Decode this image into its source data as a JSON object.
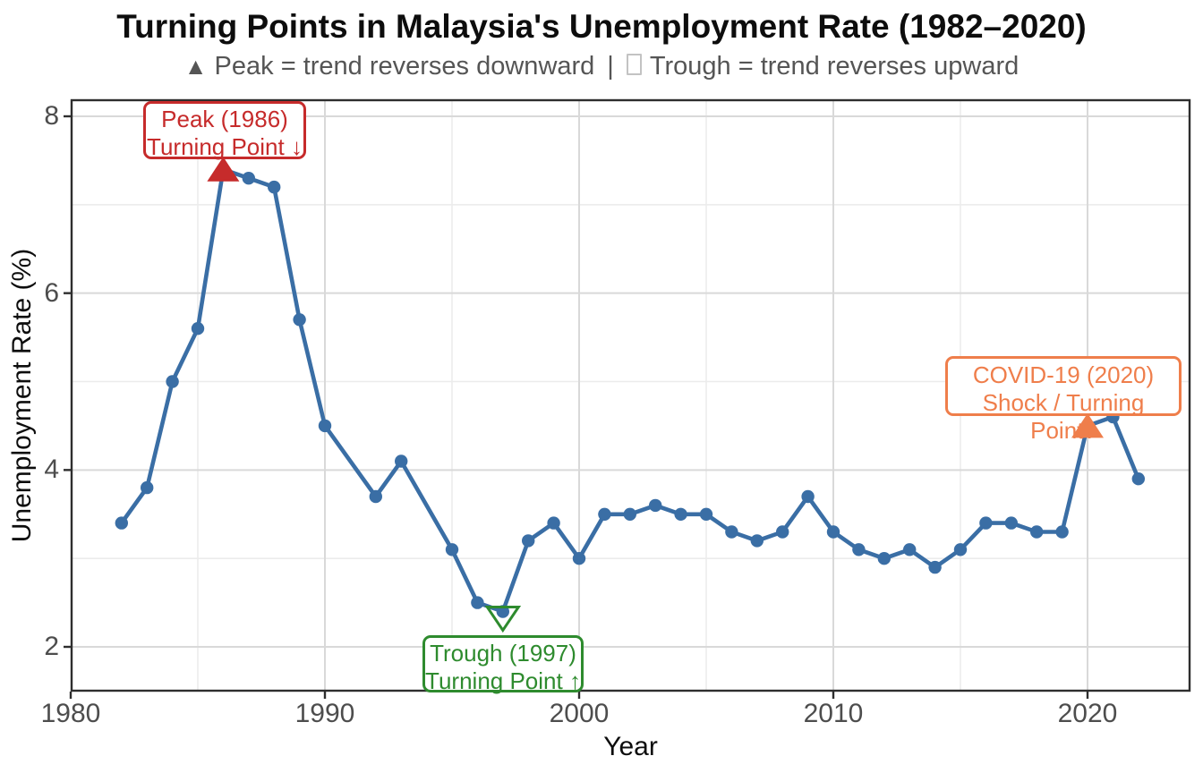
{
  "title": "Turning Points in Malaysia's Unemployment Rate (1982–2020)",
  "subtitle": {
    "peak_symbol": "▲",
    "peak_text": "Peak = trend reverses downward",
    "separator": "|",
    "trough_text": "Trough = trend reverses upward"
  },
  "colors": {
    "line": "#3a6ea5",
    "peak_red": "#c62b2b",
    "trough_green": "#2e8b2e",
    "covid_orange": "#ef7e4b",
    "grid_major": "#d9d9d9",
    "grid_minor": "#ececec",
    "axis": "#2e2e2e",
    "tick_text": "#4d4d4d",
    "panel_bg": "#ffffff"
  },
  "chart_data": {
    "type": "line",
    "title": "Turning Points in Malaysia's Unemployment Rate (1982–2020)",
    "xlabel": "Year",
    "ylabel": "Unemployment Rate (%)",
    "xlim": [
      1980,
      2024.2
    ],
    "ylim": [
      1.5,
      8.2
    ],
    "x_ticks": [
      1980,
      1990,
      2000,
      2010,
      2020
    ],
    "x_minor_ticks": [
      1985,
      1995,
      2005,
      2015
    ],
    "y_ticks": [
      2,
      4,
      6,
      8
    ],
    "y_minor_ticks": [
      3,
      5,
      7
    ],
    "grid": true,
    "legend": "none",
    "series": [
      {
        "name": "Unemployment Rate (%)",
        "points": [
          [
            1982,
            3.4
          ],
          [
            1983,
            3.8
          ],
          [
            1984,
            5.0
          ],
          [
            1985,
            5.6
          ],
          [
            1986,
            7.4
          ],
          [
            1987,
            7.3
          ],
          [
            1988,
            7.2
          ],
          [
            1989,
            5.7
          ],
          [
            1990,
            4.5
          ],
          [
            1992,
            3.7
          ],
          [
            1993,
            4.1
          ],
          [
            1995,
            3.1
          ],
          [
            1996,
            2.5
          ],
          [
            1997,
            2.4
          ],
          [
            1998,
            3.2
          ],
          [
            1999,
            3.4
          ],
          [
            2000,
            3.0
          ],
          [
            2001,
            3.5
          ],
          [
            2002,
            3.5
          ],
          [
            2003,
            3.6
          ],
          [
            2004,
            3.5
          ],
          [
            2005,
            3.5
          ],
          [
            2006,
            3.3
          ],
          [
            2007,
            3.2
          ],
          [
            2008,
            3.3
          ],
          [
            2009,
            3.7
          ],
          [
            2010,
            3.3
          ],
          [
            2011,
            3.1
          ],
          [
            2012,
            3.0
          ],
          [
            2013,
            3.1
          ],
          [
            2014,
            2.9
          ],
          [
            2015,
            3.1
          ],
          [
            2016,
            3.4
          ],
          [
            2017,
            3.4
          ],
          [
            2018,
            3.3
          ],
          [
            2019,
            3.3
          ],
          [
            2020,
            4.5
          ],
          [
            2021,
            4.6
          ],
          [
            2022,
            3.9
          ]
        ]
      }
    ],
    "annotations": [
      {
        "id": "peak",
        "year": 1986,
        "value": 7.4,
        "marker": "filled-triangle-up",
        "color": "#c62b2b",
        "label_lines": [
          "Peak (1986)",
          "Turning Point ↓"
        ]
      },
      {
        "id": "trough",
        "year": 1997,
        "value": 2.4,
        "marker": "open-triangle-down",
        "color": "#2e8b2e",
        "label_lines": [
          "Trough (1997)",
          "Turning Point ↑"
        ]
      },
      {
        "id": "covid",
        "year": 2020,
        "value": 4.5,
        "marker": "filled-triangle-up",
        "color": "#ef7e4b",
        "label_lines": [
          "COVID-19 (2020)",
          "Shock / Turning Point?"
        ]
      }
    ]
  }
}
